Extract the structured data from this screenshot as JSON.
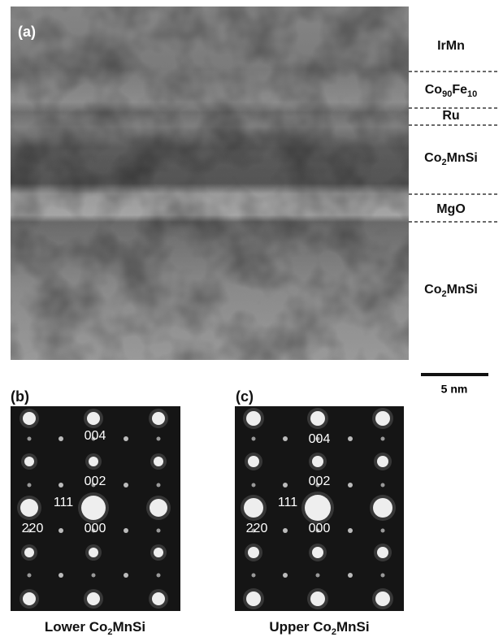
{
  "panel_a": {
    "label": "(a)",
    "layers": [
      [
        {
          "text": "IrMn"
        }
      ],
      [
        {
          "text": "Co"
        },
        {
          "sub": "90"
        },
        {
          "text": "Fe"
        },
        {
          "sub": "10"
        }
      ],
      [
        {
          "text": "Ru"
        }
      ],
      [
        {
          "text": "Co"
        },
        {
          "sub": "2"
        },
        {
          "text": "MnSi"
        }
      ],
      [
        {
          "text": "MgO"
        }
      ],
      [
        {
          "text": "Co"
        },
        {
          "sub": "2"
        },
        {
          "text": "MnSi"
        }
      ]
    ],
    "scale_bar": "5 nm"
  },
  "panel_b": {
    "label": "(b)",
    "spots": [
      "004",
      "002",
      "111",
      "220",
      "000"
    ],
    "caption": [
      {
        "text": "Lower Co"
      },
      {
        "sub": "2"
      },
      {
        "text": "MnSi"
      }
    ]
  },
  "panel_c": {
    "label": "(c)",
    "spots": [
      "004",
      "002",
      "111",
      "220",
      "000"
    ],
    "caption": [
      {
        "text": "Upper Co"
      },
      {
        "sub": "2"
      },
      {
        "text": "MnSi"
      }
    ]
  }
}
